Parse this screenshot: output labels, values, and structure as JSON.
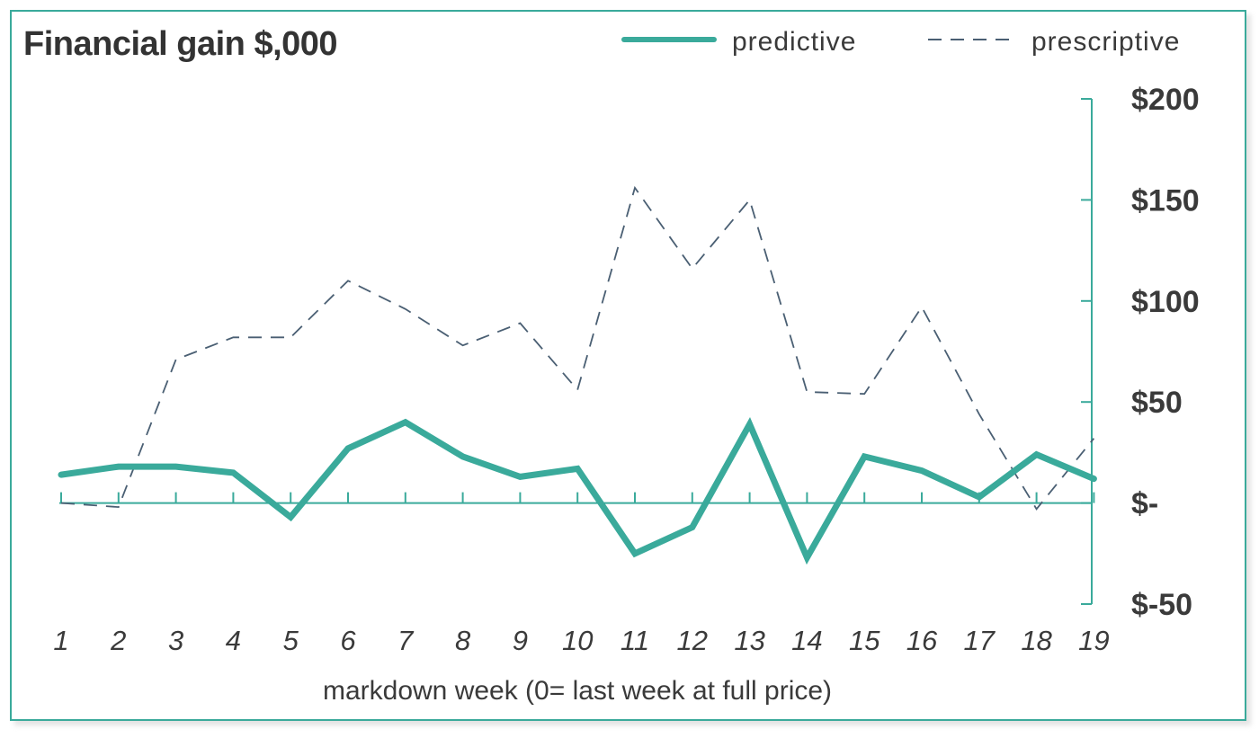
{
  "chart_data": {
    "type": "line",
    "title": "Financial gain $,000",
    "xlabel": "markdown week (0= last week at full price)",
    "ylabel": "",
    "categories": [
      "1",
      "2",
      "3",
      "4",
      "5",
      "6",
      "7",
      "8",
      "9",
      "10",
      "11",
      "12",
      "13",
      "14",
      "15",
      "16",
      "17",
      "18",
      "19"
    ],
    "ytick_labels": [
      "$200",
      "$150",
      "$100",
      "$50",
      "$-",
      "$-50"
    ],
    "ytick_values": [
      200,
      150,
      100,
      50,
      0,
      -50
    ],
    "ylim": [
      -50,
      200
    ],
    "grid": false,
    "legend_position": "top-right",
    "series": [
      {
        "name": "predictive",
        "style": "solid-thick",
        "color": "#3aaa9b",
        "values": [
          14,
          18,
          18,
          15,
          -7,
          27,
          40,
          23,
          13,
          17,
          -25,
          -12,
          39,
          -27,
          23,
          16,
          3,
          24,
          12
        ]
      },
      {
        "name": "prescriptive",
        "style": "dashed",
        "color": "#4a5f73",
        "values": [
          0,
          -2,
          71,
          82,
          82,
          110,
          96,
          78,
          89,
          56,
          156,
          116,
          150,
          55,
          54,
          97,
          44,
          -3,
          32
        ]
      }
    ]
  },
  "colors": {
    "axis": "#3aaa9b",
    "frame": "#3aaa9b",
    "text": "#3a3a3a"
  }
}
